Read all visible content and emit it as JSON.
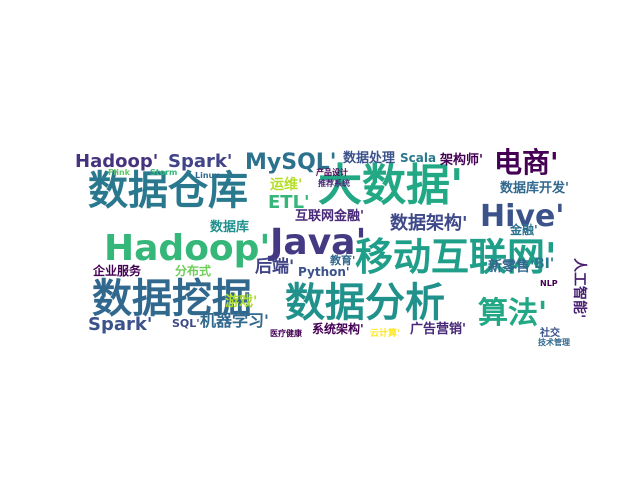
{
  "words": [
    {
      "text": "数据仓库"
    },
    {
      "text": "大数据'"
    },
    {
      "text": "Hadoop'"
    },
    {
      "text": "Java'"
    },
    {
      "text": "移动互联网'"
    },
    {
      "text": "数据挖掘"
    },
    {
      "text": "数据分析"
    },
    {
      "text": "电商'"
    },
    {
      "text": "Hive'"
    },
    {
      "text": "Hadoop'"
    },
    {
      "text": "Spark'"
    },
    {
      "text": "MySQL'"
    },
    {
      "text": "数据处理"
    },
    {
      "text": "Scala"
    },
    {
      "text": "架构师'"
    },
    {
      "text": "运维'"
    },
    {
      "text": "数据库开发'"
    },
    {
      "text": "ETL'"
    },
    {
      "text": "互联网金融'"
    },
    {
      "text": "数据架构'"
    },
    {
      "text": "数据库"
    },
    {
      "text": "金融'"
    },
    {
      "text": "后端'"
    },
    {
      "text": "教育'"
    },
    {
      "text": "企业服务"
    },
    {
      "text": "分布式"
    },
    {
      "text": "Python'"
    },
    {
      "text": "新零售'"
    },
    {
      "text": "BI'"
    },
    {
      "text": "人工智能'"
    },
    {
      "text": "游戏'"
    },
    {
      "text": "算法'"
    },
    {
      "text": "Spark'"
    },
    {
      "text": "SQL'"
    },
    {
      "text": "机器学习'"
    },
    {
      "text": "系统架构'"
    },
    {
      "text": "广告营销'"
    },
    {
      "text": "云计算'"
    },
    {
      "text": "社交"
    },
    {
      "text": "Flink"
    },
    {
      "text": "Storm"
    },
    {
      "text": "Linux"
    },
    {
      "text": "NLP"
    },
    {
      "text": "产品设计"
    },
    {
      "text": "医疗健康"
    },
    {
      "text": "技术管理"
    },
    {
      "text": "推荐系统"
    }
  ]
}
